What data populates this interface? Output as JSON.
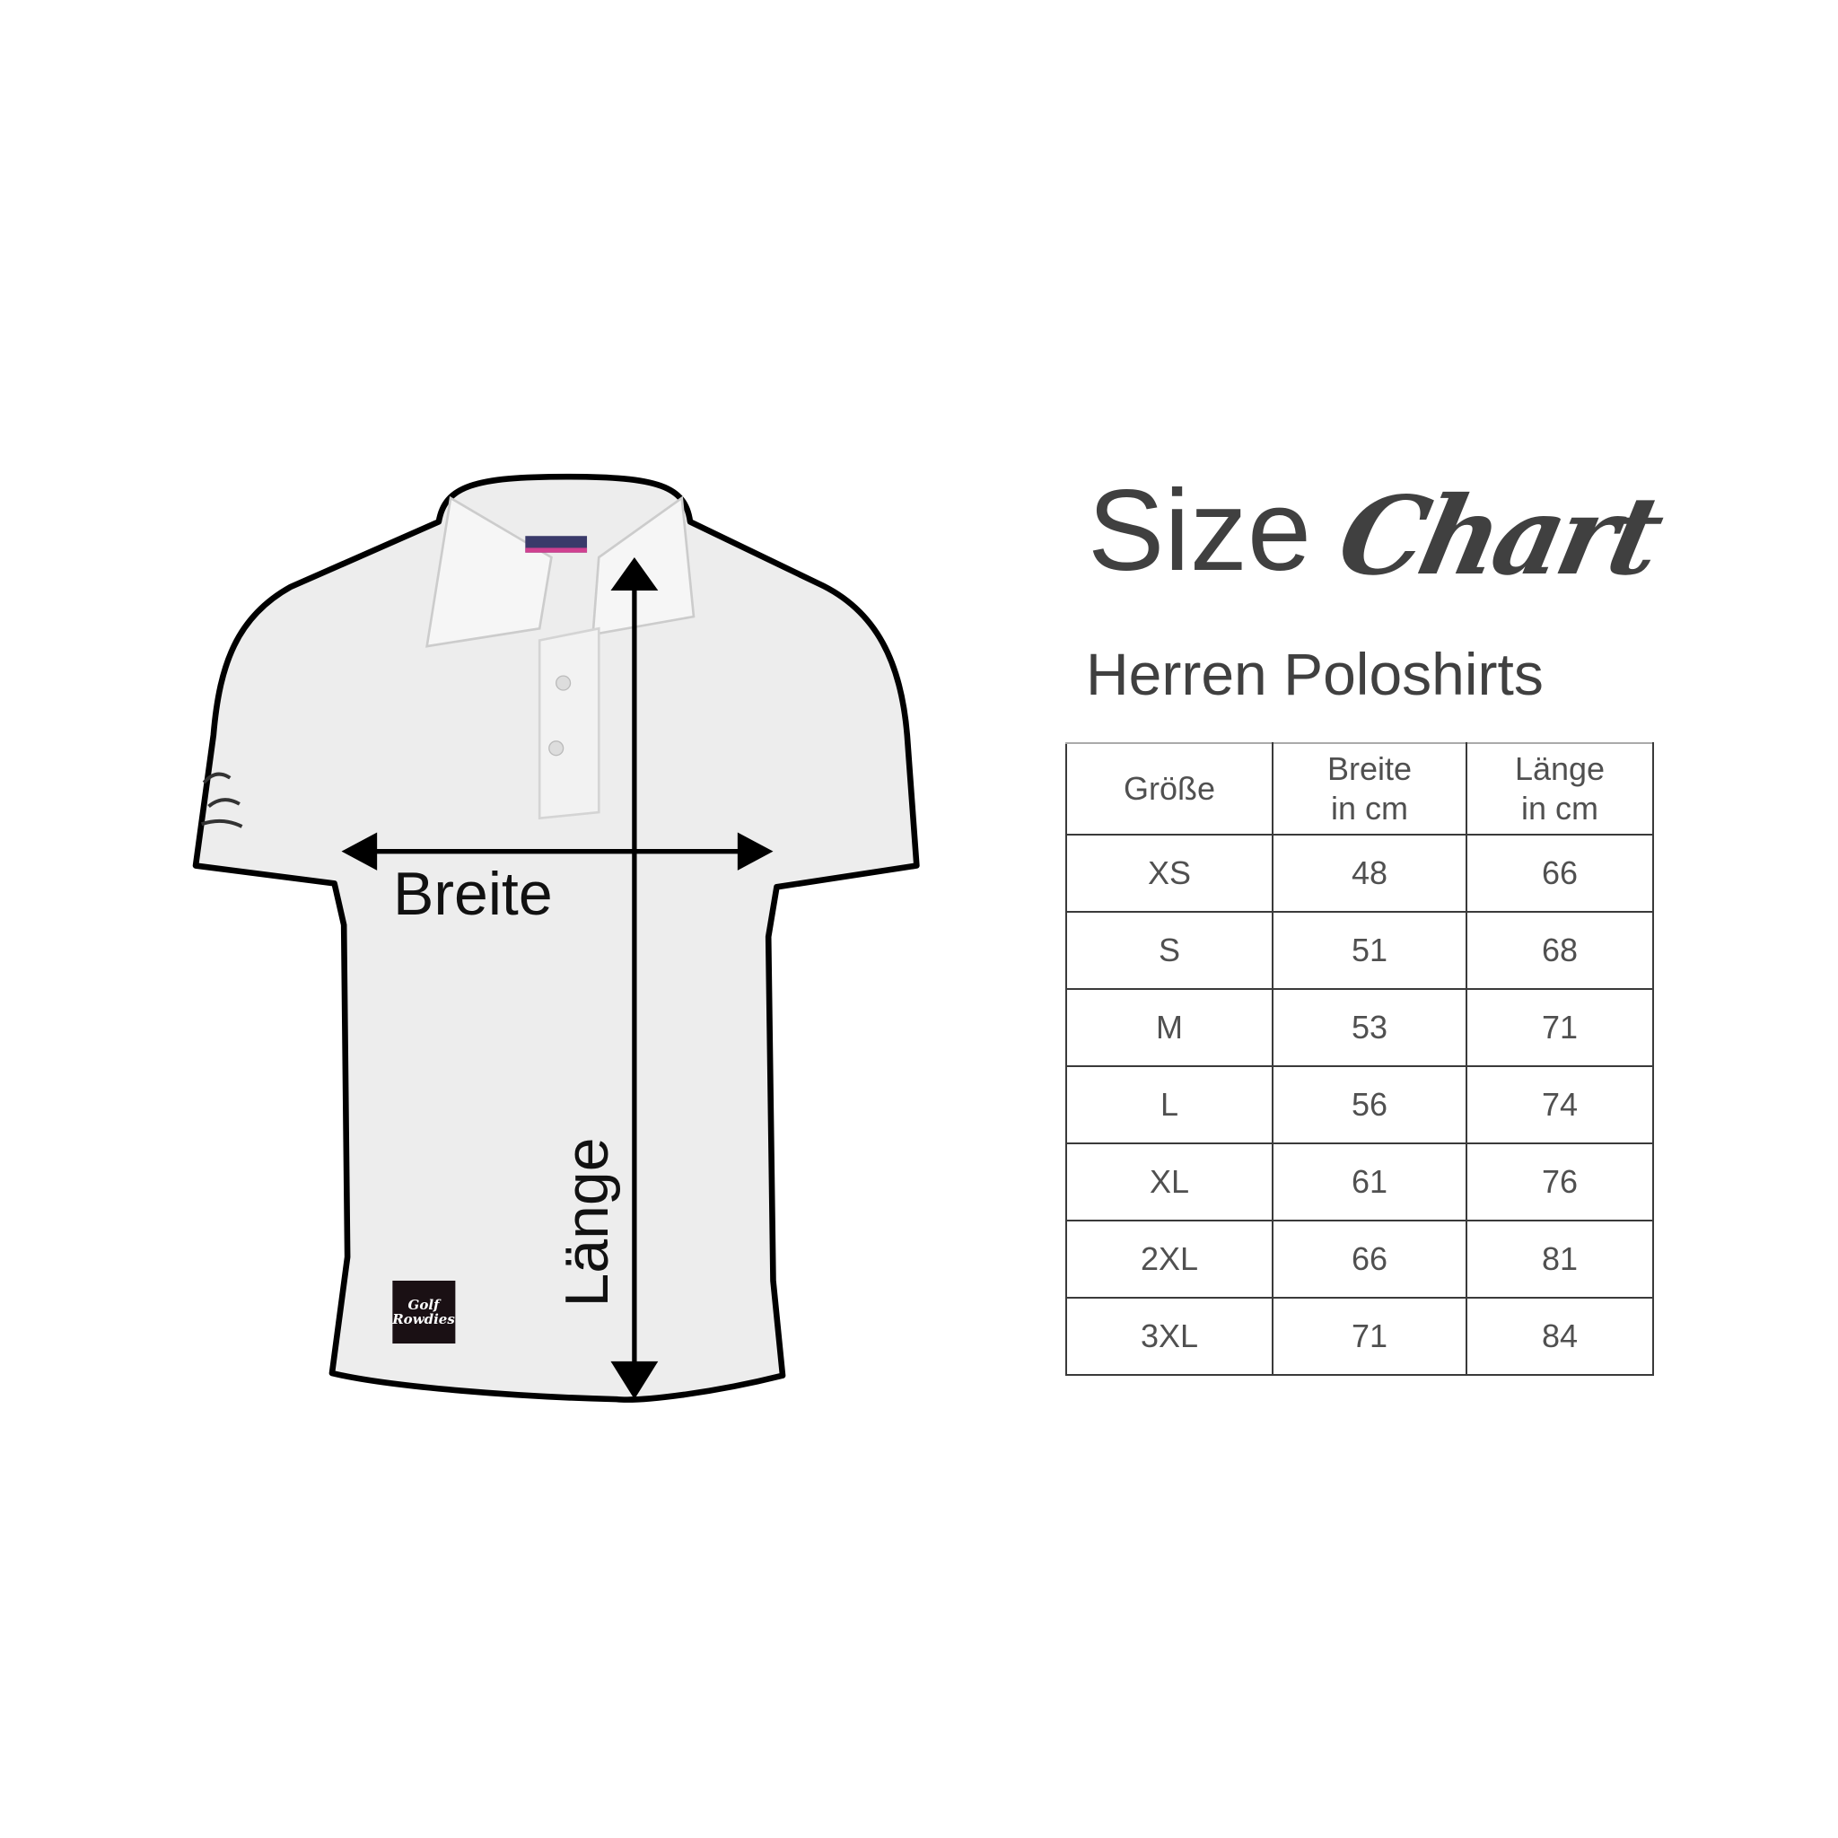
{
  "title": {
    "size": "Size",
    "chart": "Chart"
  },
  "subtitle": "Herren Poloshirts",
  "diagram": {
    "width_label": "Breite",
    "length_label": "Länge",
    "brand": "Golf Rowdies"
  },
  "table": {
    "headers": [
      [
        "Größe"
      ],
      [
        "Breite",
        "in cm"
      ],
      [
        "Länge",
        "in cm"
      ]
    ],
    "rows": [
      [
        "XS",
        "48",
        "66"
      ],
      [
        "S",
        "51",
        "68"
      ],
      [
        "M",
        "53",
        "71"
      ],
      [
        "L",
        "56",
        "74"
      ],
      [
        "XL",
        "61",
        "76"
      ],
      [
        "2XL",
        "66",
        "81"
      ],
      [
        "3XL",
        "71",
        "84"
      ]
    ]
  }
}
